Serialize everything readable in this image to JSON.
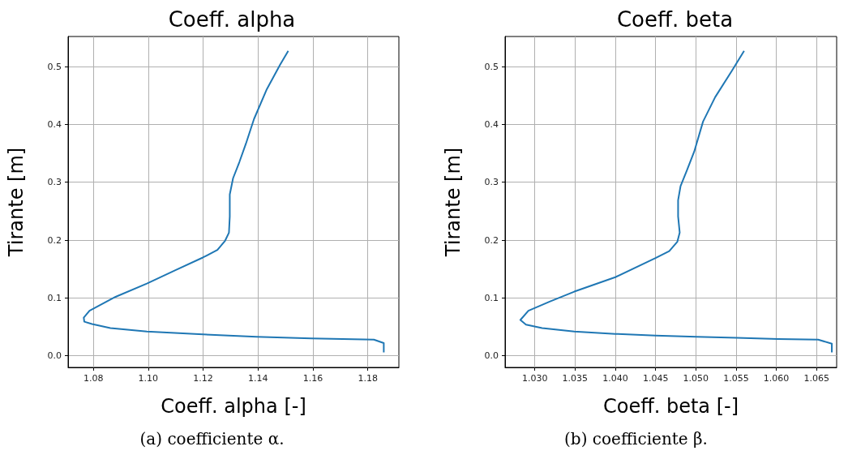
{
  "chart_data": [
    {
      "type": "line",
      "title": "Coeff. alpha",
      "xlabel": "Coeff. alpha [-]",
      "ylabel": "Tirante [m]",
      "grid": true,
      "annotations": [
        "(a) coefficiente α."
      ],
      "xlim": [
        1.0708,
        1.1913
      ],
      "ylim": [
        -0.02,
        0.552
      ],
      "xticks": [
        {
          "value": 1.08,
          "label": "1.08"
        },
        {
          "value": 1.1,
          "label": "1.10"
        },
        {
          "value": 1.12,
          "label": "1.12"
        },
        {
          "value": 1.14,
          "label": "1.14"
        },
        {
          "value": 1.16,
          "label": "1.16"
        },
        {
          "value": 1.18,
          "label": "1.18"
        }
      ],
      "yticks": [
        {
          "value": 0,
          "label": "0.0"
        },
        0.1,
        0.2,
        0.3,
        0.4,
        0.5
      ],
      "series": [
        {
          "color": "#1f77b4",
          "x": [
            1.1858,
            1.1858,
            1.1822,
            1.1594,
            1.1394,
            1.1199,
            1.0995,
            1.0862,
            1.0795,
            1.0767,
            1.0765,
            1.0786,
            1.0881,
            1.0995,
            1.1099,
            1.1199,
            1.1252,
            1.128,
            1.1294,
            1.1297,
            1.1297,
            1.1309,
            1.1332,
            1.1356,
            1.1385,
            1.1432,
            1.148,
            1.151
          ],
          "values": [
            0.006,
            0.022,
            0.028,
            0.03,
            0.033,
            0.037,
            0.042,
            0.048,
            0.055,
            0.059,
            0.066,
            0.078,
            0.102,
            0.125,
            0.148,
            0.17,
            0.183,
            0.199,
            0.213,
            0.241,
            0.279,
            0.307,
            0.335,
            0.367,
            0.409,
            0.461,
            0.503,
            0.527
          ]
        }
      ]
    },
    {
      "type": "line",
      "title": "Coeff. beta",
      "xlabel": "Coeff. beta [-]",
      "ylabel": "Tirante [m]",
      "grid": true,
      "annotations": [
        "(b) coefficiente β."
      ],
      "xlim": [
        1.0263,
        1.0675
      ],
      "ylim": [
        -0.02,
        0.552
      ],
      "xticks": [
        {
          "value": 1.03,
          "label": "1.030"
        },
        {
          "value": 1.035,
          "label": "1.035"
        },
        {
          "value": 1.04,
          "label": "1.040"
        },
        {
          "value": 1.045,
          "label": "1.045"
        },
        {
          "value": 1.05,
          "label": "1.050"
        },
        {
          "value": 1.055,
          "label": "1.055"
        },
        {
          "value": 1.06,
          "label": "1.060"
        },
        {
          "value": 1.065,
          "label": "1.065"
        }
      ],
      "yticks": [
        {
          "value": 0,
          "label": "0.0"
        },
        0.1,
        0.2,
        0.3,
        0.4,
        0.5
      ],
      "series": [
        {
          "color": "#1f77b4",
          "x": [
            1.0669,
            1.0669,
            1.0652,
            1.0602,
            1.0551,
            1.0501,
            1.045,
            1.04,
            1.0349,
            1.0309,
            1.0289,
            1.0282,
            1.0292,
            1.0319,
            1.0349,
            1.04,
            1.045,
            1.0467,
            1.0477,
            1.048,
            1.0478,
            1.0478,
            1.0481,
            1.0489,
            1.0498,
            1.0509,
            1.0524,
            1.0545,
            1.056
          ],
          "values": [
            0.006,
            0.021,
            0.028,
            0.029,
            0.031,
            0.033,
            0.035,
            0.038,
            0.042,
            0.048,
            0.054,
            0.062,
            0.078,
            0.094,
            0.111,
            0.136,
            0.169,
            0.181,
            0.197,
            0.213,
            0.241,
            0.269,
            0.293,
            0.321,
            0.353,
            0.405,
            0.447,
            0.493,
            0.527
          ]
        }
      ]
    }
  ]
}
